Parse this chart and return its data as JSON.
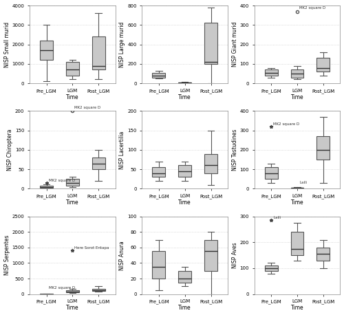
{
  "panels": [
    {
      "ylabel": "NISP Small murid",
      "whislo": [
        100,
        200,
        200
      ],
      "q1": [
        1200,
        400,
        700
      ],
      "med": [
        1700,
        700,
        900
      ],
      "q3": [
        2200,
        1100,
        2400
      ],
      "whishi": [
        3000,
        1200,
        3600
      ],
      "fliers_dot": {},
      "fliers_star": {},
      "extra_text": [],
      "ylim": [
        0,
        4000
      ],
      "yticks": [
        0,
        1000,
        2000,
        3000,
        4000
      ]
    },
    {
      "ylabel": "NISP Large murid",
      "whislo": [
        50,
        0,
        0
      ],
      "q1": [
        60,
        0,
        200
      ],
      "med": [
        80,
        5,
        220
      ],
      "q3": [
        110,
        8,
        620
      ],
      "whishi": [
        130,
        15,
        780
      ],
      "fliers_dot": {},
      "fliers_star": {},
      "extra_text": [],
      "ylim": [
        0,
        800
      ],
      "yticks": [
        0,
        200,
        400,
        600,
        800
      ]
    },
    {
      "ylabel": "NISP Giant murid",
      "whislo": [
        30,
        20,
        40
      ],
      "q1": [
        40,
        30,
        60
      ],
      "med": [
        55,
        50,
        80
      ],
      "q3": [
        70,
        70,
        130
      ],
      "whishi": [
        80,
        90,
        160
      ],
      "fliers_dot": {
        "1": [
          [
            370,
            "MK2 square D"
          ]
        ]
      },
      "fliers_star": {},
      "extra_text": [],
      "ylim": [
        0,
        400
      ],
      "yticks": [
        0,
        100,
        200,
        300,
        400
      ]
    },
    {
      "ylabel": "NISP Chiroptera",
      "whislo": [
        0,
        5,
        20
      ],
      "q1": [
        2,
        8,
        50
      ],
      "med": [
        5,
        15,
        65
      ],
      "q3": [
        8,
        25,
        80
      ],
      "whishi": [
        12,
        30,
        100
      ],
      "fliers_dot": {
        "1": [
          [
            200,
            "MK2 square D"
          ]
        ]
      },
      "fliers_star": {
        "0": [
          [
            15,
            "MK2 square D"
          ]
        ]
      },
      "extra_text": [],
      "ylim": [
        0,
        200
      ],
      "yticks": [
        0,
        50,
        100,
        150,
        200
      ]
    },
    {
      "ylabel": "NISP Lacertilia",
      "whislo": [
        20,
        20,
        10
      ],
      "q1": [
        30,
        30,
        40
      ],
      "med": [
        40,
        45,
        60
      ],
      "q3": [
        55,
        60,
        90
      ],
      "whishi": [
        70,
        70,
        150
      ],
      "fliers_dot": {},
      "fliers_star": {},
      "extra_text": [],
      "ylim": [
        0,
        200
      ],
      "yticks": [
        0,
        50,
        100,
        150,
        200
      ]
    },
    {
      "ylabel": "NISP Testudines",
      "whislo": [
        30,
        0,
        30
      ],
      "q1": [
        50,
        2,
        150
      ],
      "med": [
        80,
        4,
        200
      ],
      "q3": [
        110,
        6,
        270
      ],
      "whishi": [
        130,
        8,
        370
      ],
      "fliers_dot": {},
      "fliers_star": {
        "0": [
          [
            320,
            "MK2 square D"
          ]
        ]
      },
      "extra_text": [
        [
          1,
          30,
          "Laili"
        ]
      ],
      "ylim": [
        0,
        400
      ],
      "yticks": [
        0,
        100,
        200,
        300,
        400
      ]
    },
    {
      "ylabel": "NISP Serpentes",
      "whislo": [
        0,
        40,
        80
      ],
      "q1": [
        0,
        60,
        100
      ],
      "med": [
        2,
        80,
        130
      ],
      "q3": [
        4,
        130,
        180
      ],
      "whishi": [
        8,
        180,
        250
      ],
      "fliers_dot": {},
      "fliers_star": {
        "1": [
          [
            1400,
            "Here Sorot Entapa"
          ]
        ]
      },
      "extra_text": [
        [
          0,
          200,
          "MK2 square D"
        ]
      ],
      "ylim": [
        0,
        2500
      ],
      "yticks": [
        0,
        500,
        1000,
        1500,
        2000,
        2500
      ]
    },
    {
      "ylabel": "NISP Anura",
      "whislo": [
        5,
        10,
        0
      ],
      "q1": [
        20,
        15,
        30
      ],
      "med": [
        35,
        20,
        55
      ],
      "q3": [
        55,
        30,
        70
      ],
      "whishi": [
        70,
        35,
        80
      ],
      "fliers_dot": {},
      "fliers_star": {},
      "extra_text": [],
      "ylim": [
        0,
        100
      ],
      "yticks": [
        0,
        20,
        40,
        60,
        80,
        100
      ]
    },
    {
      "ylabel": "NISP Aves",
      "whislo": [
        80,
        130,
        100
      ],
      "q1": [
        90,
        150,
        130
      ],
      "med": [
        100,
        175,
        155
      ],
      "q3": [
        110,
        240,
        180
      ],
      "whishi": [
        120,
        275,
        210
      ],
      "fliers_dot": {},
      "fliers_star": {
        "0": [
          [
            285,
            "Laili"
          ]
        ]
      },
      "extra_text": [],
      "ylim": [
        0,
        300
      ],
      "yticks": [
        0,
        100,
        200,
        300
      ]
    }
  ],
  "groups": [
    "Pre_LGM",
    "LGM",
    "Post_LGM"
  ],
  "positions": [
    1,
    2,
    3
  ],
  "box_width": 0.5,
  "box_facecolor": "#c8c8c8",
  "box_edgecolor": "#555555",
  "median_color": "#333333",
  "whisker_color": "#555555",
  "cap_color": "#555555",
  "grid_color": "#cccccc",
  "xlabel": "Time",
  "figsize": [
    5.0,
    4.58
  ],
  "dpi": 100
}
